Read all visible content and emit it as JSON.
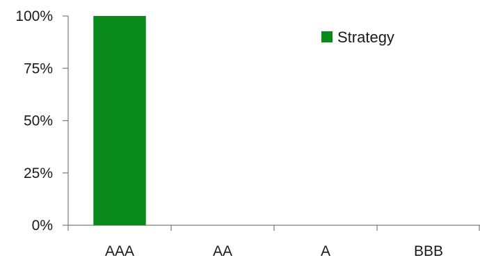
{
  "chart_data": {
    "type": "bar",
    "categories": [
      "AAA",
      "AA",
      "A",
      "BBB"
    ],
    "series": [
      {
        "name": "Strategy",
        "values": [
          100,
          0,
          0,
          0
        ],
        "color": "#0a8a1a"
      }
    ],
    "ylim": [
      0,
      100
    ],
    "yticks": [
      0,
      25,
      50,
      75,
      100
    ],
    "ytick_labels": [
      "0%",
      "25%",
      "50%",
      "75%",
      "100%"
    ],
    "title": "",
    "xlabel": "",
    "ylabel": "",
    "grid": false,
    "legend_position": "top-right"
  }
}
